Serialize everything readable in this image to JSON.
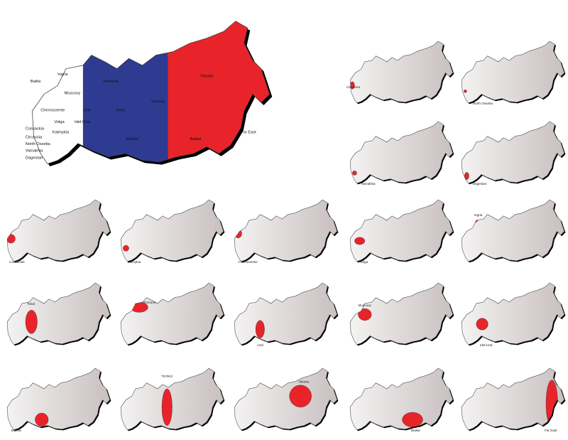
{
  "colors": {
    "white_region": "#ffffff",
    "blue_region": "#2e3b91",
    "red_region": "#e8242a",
    "inactive_region": "#d9d3d3",
    "highlight": "#e8242a",
    "outline": "#333333"
  },
  "main_map": {
    "labels": [
      "Baltia",
      "Ingria",
      "Muscovy",
      "Chernozemie",
      "Volga",
      "Ural",
      "Idel-Ural",
      "Cossackia",
      "Kalmykia",
      "Circassia",
      "North Ossetia",
      "Vainakhia",
      "Dagestan",
      "Pomorie",
      "Tobol",
      "Siberia",
      "Yenisey",
      "Yakutia",
      "Baikal",
      "Far East"
    ]
  },
  "small_maps": [
    {
      "label": "Circassia"
    },
    {
      "label": "North Ossetia"
    },
    {
      "label": "Vainakhia"
    },
    {
      "label": "Dagestan"
    },
    {
      "label": "Cossackia"
    },
    {
      "label": "Kalmykia"
    },
    {
      "label": "Chernozemie"
    },
    {
      "label": "Volga"
    },
    {
      "label": "Ingria"
    },
    {
      "label": "Tobol"
    },
    {
      "label": "Pomorie"
    },
    {
      "label": "Ural"
    },
    {
      "label": "Muscovy"
    },
    {
      "label": "Idel-Ural"
    },
    {
      "label": "Siberia"
    },
    {
      "label": "Yenisey"
    },
    {
      "label": "Yakutia"
    },
    {
      "label": "Baikal"
    },
    {
      "label": "Far East"
    }
  ]
}
